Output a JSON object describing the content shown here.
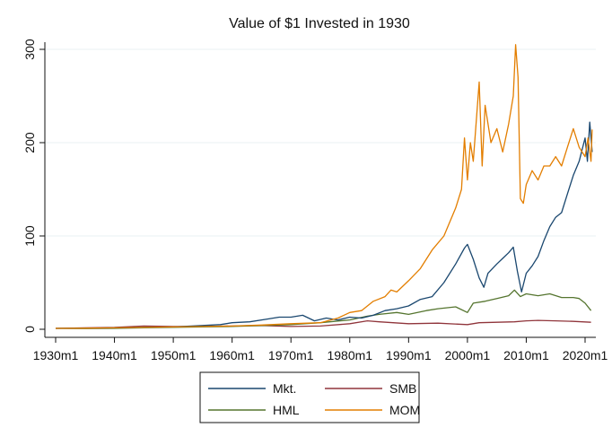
{
  "chart_data": {
    "type": "line",
    "title": "Value of $1 Invested in 1930",
    "xlabel": "",
    "ylabel": "",
    "xlim": [
      1930,
      2021
    ],
    "ylim": [
      0,
      310
    ],
    "grid": true,
    "legend_position": "bottom",
    "x_ticks": [
      1930,
      1940,
      1950,
      1960,
      1970,
      1980,
      1990,
      2000,
      2010,
      2020
    ],
    "x_tick_labels": [
      "1930m1",
      "1940m1",
      "1950m1",
      "1960m1",
      "1970m1",
      "1980m1",
      "1990m1",
      "2000m1",
      "2010m1",
      "2020m1"
    ],
    "y_ticks": [
      0,
      100,
      200,
      300
    ],
    "y_tick_labels": [
      "0",
      "100",
      "200",
      "300"
    ],
    "series": [
      {
        "name": "Mkt.",
        "color": "#1a476f",
        "points": [
          [
            1930,
            1
          ],
          [
            1935,
            1.2
          ],
          [
            1940,
            1.5
          ],
          [
            1945,
            2
          ],
          [
            1950,
            2.5
          ],
          [
            1955,
            4
          ],
          [
            1958,
            5
          ],
          [
            1960,
            7
          ],
          [
            1963,
            8
          ],
          [
            1966,
            11
          ],
          [
            1968,
            13
          ],
          [
            1970,
            13
          ],
          [
            1972,
            15
          ],
          [
            1974,
            9
          ],
          [
            1976,
            12
          ],
          [
            1978,
            10
          ],
          [
            1980,
            13
          ],
          [
            1982,
            12
          ],
          [
            1984,
            15
          ],
          [
            1986,
            20
          ],
          [
            1988,
            22
          ],
          [
            1990,
            25
          ],
          [
            1992,
            32
          ],
          [
            1994,
            35
          ],
          [
            1996,
            50
          ],
          [
            1998,
            70
          ],
          [
            1999.5,
            87
          ],
          [
            2000,
            91
          ],
          [
            2001,
            75
          ],
          [
            2002,
            55
          ],
          [
            2002.8,
            45
          ],
          [
            2003.5,
            60
          ],
          [
            2005,
            70
          ],
          [
            2006,
            76
          ],
          [
            2007,
            82
          ],
          [
            2007.8,
            88
          ],
          [
            2008.5,
            62
          ],
          [
            2009.2,
            40
          ],
          [
            2010,
            60
          ],
          [
            2011,
            68
          ],
          [
            2012,
            78
          ],
          [
            2013,
            95
          ],
          [
            2014,
            110
          ],
          [
            2015,
            120
          ],
          [
            2016,
            125
          ],
          [
            2017,
            145
          ],
          [
            2018,
            165
          ],
          [
            2019,
            180
          ],
          [
            2020,
            205
          ],
          [
            2020.4,
            180
          ],
          [
            2020.8,
            222
          ],
          [
            2021.2,
            190
          ]
        ]
      },
      {
        "name": "SMB",
        "color": "#90353b",
        "points": [
          [
            1930,
            1
          ],
          [
            1935,
            1.5
          ],
          [
            1940,
            2
          ],
          [
            1945,
            3.5
          ],
          [
            1950,
            3
          ],
          [
            1955,
            3
          ],
          [
            1960,
            3.5
          ],
          [
            1965,
            4
          ],
          [
            1970,
            3
          ],
          [
            1975,
            3.5
          ],
          [
            1980,
            6
          ],
          [
            1983,
            9
          ],
          [
            1985,
            8
          ],
          [
            1990,
            6
          ],
          [
            1995,
            6.5
          ],
          [
            2000,
            5
          ],
          [
            2002,
            7
          ],
          [
            2005,
            7.5
          ],
          [
            2008,
            8
          ],
          [
            2010,
            9
          ],
          [
            2012,
            9.5
          ],
          [
            2015,
            9
          ],
          [
            2018,
            8.5
          ],
          [
            2021,
            7.5
          ]
        ]
      },
      {
        "name": "HML",
        "color": "#55752f",
        "points": [
          [
            1930,
            1
          ],
          [
            1935,
            0.8
          ],
          [
            1940,
            1
          ],
          [
            1945,
            1.5
          ],
          [
            1950,
            2
          ],
          [
            1955,
            2.5
          ],
          [
            1960,
            3
          ],
          [
            1965,
            4
          ],
          [
            1970,
            5
          ],
          [
            1975,
            7
          ],
          [
            1980,
            10
          ],
          [
            1983,
            14
          ],
          [
            1985,
            16
          ],
          [
            1988,
            18
          ],
          [
            1990,
            16
          ],
          [
            1993,
            20
          ],
          [
            1995,
            22
          ],
          [
            1998,
            24
          ],
          [
            2000,
            18
          ],
          [
            2001,
            28
          ],
          [
            2003,
            30
          ],
          [
            2005,
            33
          ],
          [
            2007,
            36
          ],
          [
            2008,
            42
          ],
          [
            2009,
            35
          ],
          [
            2010,
            38
          ],
          [
            2012,
            36
          ],
          [
            2014,
            38
          ],
          [
            2016,
            34
          ],
          [
            2018,
            34
          ],
          [
            2019,
            33
          ],
          [
            2020,
            28
          ],
          [
            2021,
            20
          ]
        ]
      },
      {
        "name": "MOM",
        "color": "#e37e00",
        "points": [
          [
            1930,
            1
          ],
          [
            1935,
            1.2
          ],
          [
            1940,
            1.5
          ],
          [
            1945,
            2
          ],
          [
            1950,
            2.5
          ],
          [
            1955,
            3
          ],
          [
            1960,
            3.5
          ],
          [
            1965,
            4.5
          ],
          [
            1970,
            6
          ],
          [
            1975,
            7
          ],
          [
            1978,
            12
          ],
          [
            1980,
            18
          ],
          [
            1982,
            20
          ],
          [
            1984,
            30
          ],
          [
            1986,
            35
          ],
          [
            1987,
            42
          ],
          [
            1988,
            40
          ],
          [
            1990,
            52
          ],
          [
            1992,
            65
          ],
          [
            1994,
            85
          ],
          [
            1996,
            100
          ],
          [
            1998,
            130
          ],
          [
            1999,
            150
          ],
          [
            1999.5,
            205
          ],
          [
            2000,
            160
          ],
          [
            2000.5,
            200
          ],
          [
            2001,
            180
          ],
          [
            2002,
            265
          ],
          [
            2002.5,
            175
          ],
          [
            2003,
            240
          ],
          [
            2004,
            200
          ],
          [
            2005,
            215
          ],
          [
            2006,
            190
          ],
          [
            2007,
            220
          ],
          [
            2007.8,
            250
          ],
          [
            2008.2,
            305
          ],
          [
            2008.6,
            270
          ],
          [
            2009,
            140
          ],
          [
            2009.5,
            135
          ],
          [
            2010,
            155
          ],
          [
            2011,
            170
          ],
          [
            2012,
            160
          ],
          [
            2013,
            175
          ],
          [
            2014,
            175
          ],
          [
            2015,
            185
          ],
          [
            2016,
            175
          ],
          [
            2017,
            195
          ],
          [
            2018,
            215
          ],
          [
            2019,
            195
          ],
          [
            2020,
            185
          ],
          [
            2020.5,
            205
          ],
          [
            2021,
            180
          ],
          [
            2021.2,
            214
          ]
        ]
      }
    ]
  }
}
